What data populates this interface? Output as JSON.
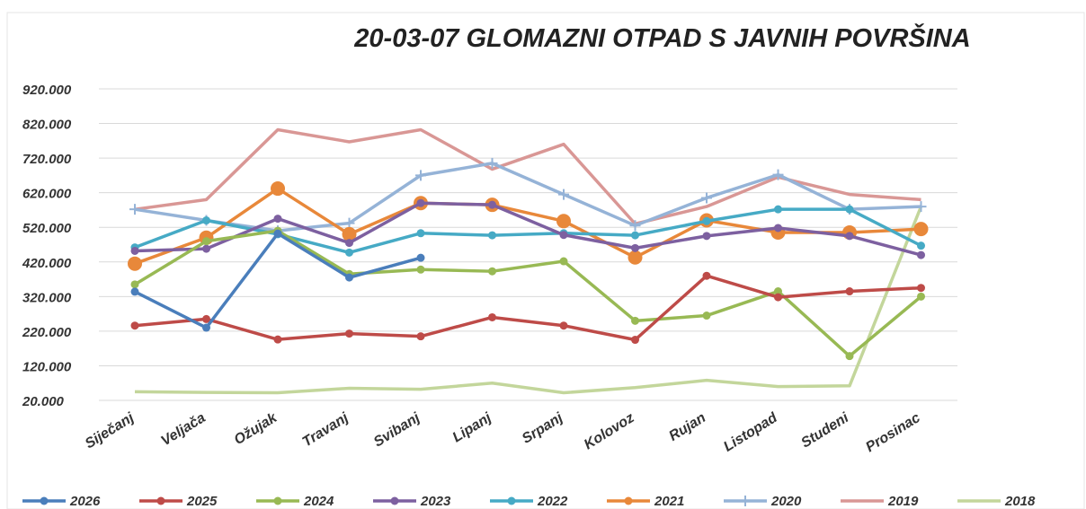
{
  "chart_data": {
    "type": "line",
    "title": "20-03-07 GLOMAZNI OTPAD S JAVNIH POVRŠINA",
    "categories": [
      "Siječanj",
      "Veljača",
      "Ožujak",
      "Travanj",
      "Svibanj",
      "Lipanj",
      "Srpanj",
      "Kolovoz",
      "Rujan",
      "Listopad",
      "Studeni",
      "Prosinac"
    ],
    "ylim": [
      20000,
      920000
    ],
    "yticks": [
      {
        "value": 20000,
        "label": "20.000"
      },
      {
        "value": 120000,
        "label": "120.000"
      },
      {
        "value": 220000,
        "label": "220.000"
      },
      {
        "value": 320000,
        "label": "320.000"
      },
      {
        "value": 420000,
        "label": "420.000"
      },
      {
        "value": 520000,
        "label": "520.000"
      },
      {
        "value": 620000,
        "label": "620.000"
      },
      {
        "value": 720000,
        "label": "720.000"
      },
      {
        "value": 820000,
        "label": "820.000"
      },
      {
        "value": 920000,
        "label": "920.000"
      }
    ],
    "grid": true,
    "series": [
      {
        "name": "2026",
        "color": "#4a7ebb",
        "marker": "circle",
        "values": [
          334000,
          230000,
          502000,
          375000,
          432000,
          null,
          null,
          null,
          null,
          null,
          null,
          null
        ]
      },
      {
        "name": "2025",
        "color": "#be4b48",
        "marker": "circle",
        "values": [
          236000,
          255000,
          196000,
          213000,
          205000,
          260000,
          236000,
          195000,
          380000,
          318000,
          335000,
          345000
        ]
      },
      {
        "name": "2024",
        "color": "#98b954",
        "marker": "circle",
        "values": [
          355000,
          480000,
          510000,
          385000,
          398000,
          393000,
          422000,
          250000,
          265000,
          335000,
          148000,
          320000
        ]
      },
      {
        "name": "2023",
        "color": "#7d60a0",
        "marker": "circle",
        "values": [
          452000,
          458000,
          545000,
          475000,
          590000,
          585000,
          498000,
          460000,
          495000,
          518000,
          495000,
          440000
        ]
      },
      {
        "name": "2022",
        "color": "#46aac5",
        "marker": "circle",
        "values": [
          462000,
          540000,
          500000,
          447000,
          503000,
          497000,
          503000,
          497000,
          538000,
          572000,
          572000,
          467000
        ]
      },
      {
        "name": "2021",
        "color": "#e8883a",
        "marker": "big",
        "values": [
          415000,
          490000,
          632000,
          500000,
          590000,
          585000,
          538000,
          433000,
          540000,
          505000,
          505000,
          515000
        ]
      },
      {
        "name": "2020",
        "color": "#95b3d7",
        "marker": "plus",
        "values": [
          572000,
          540000,
          510000,
          532000,
          670000,
          705000,
          615000,
          525000,
          605000,
          672000,
          572000,
          580000
        ]
      },
      {
        "name": "2019",
        "color": "#d99795",
        "marker": "none",
        "values": [
          572000,
          600000,
          802000,
          767000,
          802000,
          688000,
          760000,
          530000,
          580000,
          665000,
          615000,
          600000
        ]
      },
      {
        "name": "2018",
        "color": "#c3d69b",
        "marker": "none",
        "values": [
          45000,
          43000,
          42000,
          55000,
          52000,
          70000,
          42000,
          57000,
          78000,
          60000,
          62000,
          580000
        ]
      }
    ]
  }
}
